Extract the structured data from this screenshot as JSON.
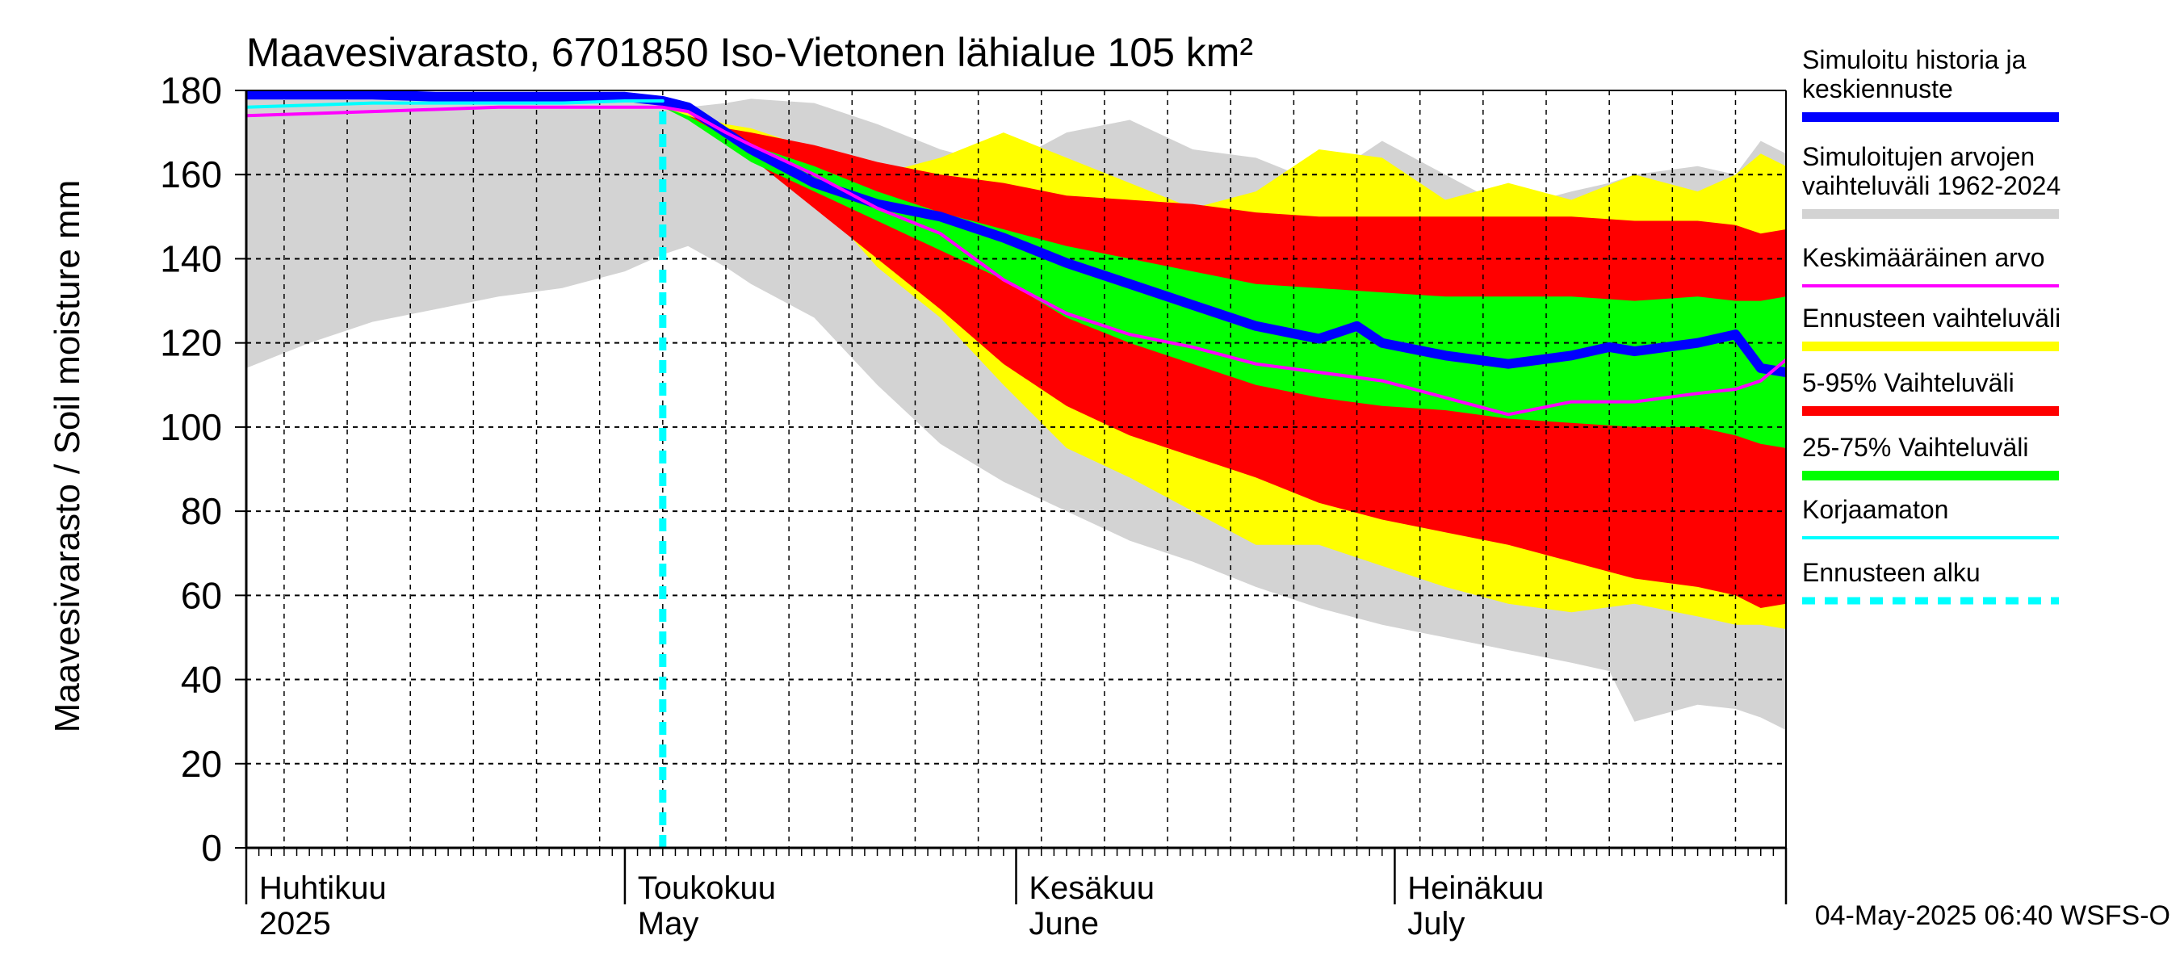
{
  "chart_data": {
    "type": "area",
    "title": "Maavesivarasto, 6701850 Iso-Vietonen lähialue 105 km²",
    "ylabel": "Maavesivarasto / Soil moisture   mm",
    "xlabel": "",
    "ylim": [
      0,
      180
    ],
    "xlim": [
      0,
      122
    ],
    "yticks": [
      0,
      20,
      40,
      60,
      80,
      100,
      120,
      140,
      160,
      180
    ],
    "ytick_labels": [
      "0",
      "20",
      "40",
      "60",
      "80",
      "100",
      "120",
      "140",
      "160",
      "180"
    ],
    "grid": true,
    "x_unit": "days since 1 April 2025",
    "month_ticks": [
      0,
      30,
      61,
      91,
      122
    ],
    "month_labels": [
      {
        "x": 0.5,
        "fi": "Huhtikuu",
        "en": "2025"
      },
      {
        "x": 30.5,
        "fi": "Toukokuu",
        "en": "May"
      },
      {
        "x": 61.5,
        "fi": "Kesäkuu",
        "en": "June"
      },
      {
        "x": 91.5,
        "fi": "Heinäkuu",
        "en": "July"
      }
    ],
    "forecast_start": 33,
    "timestamp": "04-May-2025 06:40 WSFS-O",
    "bands": [
      {
        "name": "Simuloitujen arvojen vaihteluväli 1962-2024",
        "color": "#d3d3d3",
        "x": [
          0,
          5,
          10,
          15,
          20,
          25,
          30,
          33,
          35,
          38,
          40,
          45,
          50,
          55,
          60,
          65,
          70,
          75,
          80,
          85,
          90,
          95,
          100,
          105,
          108,
          110,
          115,
          118,
          120,
          122
        ],
        "upper": [
          178,
          178,
          178.5,
          178.5,
          178.5,
          178.5,
          178,
          177,
          176,
          177,
          178,
          177,
          172,
          166,
          162,
          170,
          173,
          166,
          164,
          158,
          168,
          160,
          152,
          156,
          158,
          160,
          162,
          160,
          168,
          165
        ],
        "lower": [
          114,
          120,
          125,
          128,
          131,
          133,
          137,
          141,
          143,
          138,
          134,
          126,
          110,
          96,
          87,
          80,
          73,
          68,
          62,
          57,
          53,
          50,
          47,
          44,
          42,
          30,
          34,
          33,
          31,
          28
        ]
      },
      {
        "name": "Ennusteen vaihteluväli",
        "color": "#ffff00",
        "x": [
          33,
          35,
          38,
          40,
          45,
          50,
          55,
          60,
          65,
          70,
          75,
          80,
          85,
          90,
          95,
          100,
          105,
          110,
          115,
          118,
          120,
          122
        ],
        "upper": [
          176,
          175,
          172,
          171,
          166,
          160,
          164,
          170,
          164,
          158,
          152,
          156,
          166,
          164,
          154,
          158,
          154,
          160,
          156,
          160,
          165,
          162
        ],
        "lower": [
          176,
          174,
          170,
          166,
          155,
          138,
          126,
          110,
          95,
          88,
          80,
          72,
          72,
          67,
          62,
          58,
          56,
          58,
          55,
          53,
          53,
          52
        ]
      },
      {
        "name": "5-95% Vaihteluväli",
        "color": "#ff0000",
        "x": [
          33,
          35,
          38,
          40,
          45,
          50,
          55,
          60,
          65,
          70,
          75,
          80,
          85,
          90,
          95,
          100,
          105,
          110,
          115,
          118,
          120,
          122
        ],
        "upper": [
          176,
          174,
          171,
          170,
          167,
          163,
          160,
          158,
          155,
          154,
          153,
          151,
          150,
          150,
          150,
          150,
          150,
          149,
          149,
          148,
          146,
          147
        ],
        "lower": [
          176,
          174,
          168,
          164,
          152,
          140,
          128,
          115,
          105,
          98,
          93,
          88,
          82,
          78,
          75,
          72,
          68,
          64,
          62,
          60,
          57,
          58
        ]
      },
      {
        "name": "25-75% Vaihteluväli",
        "color": "#00ff00",
        "x": [
          33,
          35,
          38,
          40,
          45,
          50,
          55,
          60,
          65,
          70,
          75,
          80,
          85,
          90,
          95,
          100,
          105,
          110,
          115,
          118,
          120,
          122
        ],
        "upper": [
          176,
          174,
          169,
          167,
          162,
          156,
          151,
          147,
          143,
          140,
          137,
          134,
          133,
          132,
          131,
          131,
          131,
          130,
          131,
          130,
          130,
          131
        ],
        "lower": [
          176,
          173,
          167,
          163,
          156,
          149,
          142,
          135,
          126,
          120,
          115,
          110,
          107,
          105,
          104,
          102,
          101,
          100,
          100,
          98,
          96,
          95
        ]
      }
    ],
    "series": [
      {
        "name": "Simuloitu historia ja keskiennuste",
        "color": "#0000ff",
        "width": 12,
        "x": [
          0,
          5,
          10,
          15,
          20,
          25,
          30,
          33,
          35,
          38,
          40,
          45,
          50,
          55,
          60,
          65,
          70,
          75,
          80,
          85,
          88,
          90,
          95,
          100,
          105,
          108,
          110,
          115,
          118,
          120,
          122
        ],
        "y": [
          179,
          179,
          179,
          178.5,
          178.5,
          178.5,
          178.5,
          177.5,
          176,
          170,
          166,
          158,
          153,
          150,
          145,
          139,
          134,
          129,
          124,
          121,
          124,
          120,
          117,
          115,
          117,
          119,
          118,
          120,
          122,
          114,
          113
        ]
      },
      {
        "name": "Keskimääräinen arvo",
        "color": "#ff00ff",
        "width": 4,
        "x": [
          0,
          5,
          10,
          15,
          20,
          25,
          30,
          33,
          35,
          38,
          40,
          45,
          50,
          55,
          60,
          65,
          70,
          75,
          80,
          85,
          90,
          95,
          100,
          105,
          110,
          115,
          118,
          120,
          122
        ],
        "y": [
          174,
          174.5,
          175,
          175.5,
          176,
          176,
          176,
          176,
          175,
          170,
          167,
          160,
          152,
          146,
          135,
          127,
          122,
          119,
          115,
          113,
          111,
          107,
          103,
          106,
          106,
          108,
          109,
          111,
          116
        ]
      },
      {
        "name": "Korjaamaton",
        "color": "#00ffff",
        "width": 4,
        "x": [
          0,
          5,
          10,
          15,
          20,
          25,
          30,
          33
        ],
        "y": [
          176,
          176.5,
          177,
          177,
          177,
          177,
          177.5,
          177.5
        ]
      }
    ],
    "legend_position": "right",
    "legend": [
      {
        "label": "Simuloitu historia ja keskiennuste",
        "color": "#0000ff",
        "style": "thick"
      },
      {
        "label": "Simuloitujen arvojen vaihteluväli 1962-2024",
        "color": "#d3d3d3",
        "style": "thick"
      },
      {
        "label": "Keskimääräinen arvo",
        "color": "#ff00ff",
        "style": "thin"
      },
      {
        "label": "Ennusteen vaihteluväli",
        "color": "#ffff00",
        "style": "thick"
      },
      {
        "label": "5-95% Vaihteluväli",
        "color": "#ff0000",
        "style": "thick"
      },
      {
        "label": "25-75% Vaihteluväli",
        "color": "#00ff00",
        "style": "thick"
      },
      {
        "label": "Korjaamaton",
        "color": "#00ffff",
        "style": "thin"
      },
      {
        "label": "Ennusteen alku",
        "color": "#00ffff",
        "style": "dashed"
      }
    ]
  }
}
